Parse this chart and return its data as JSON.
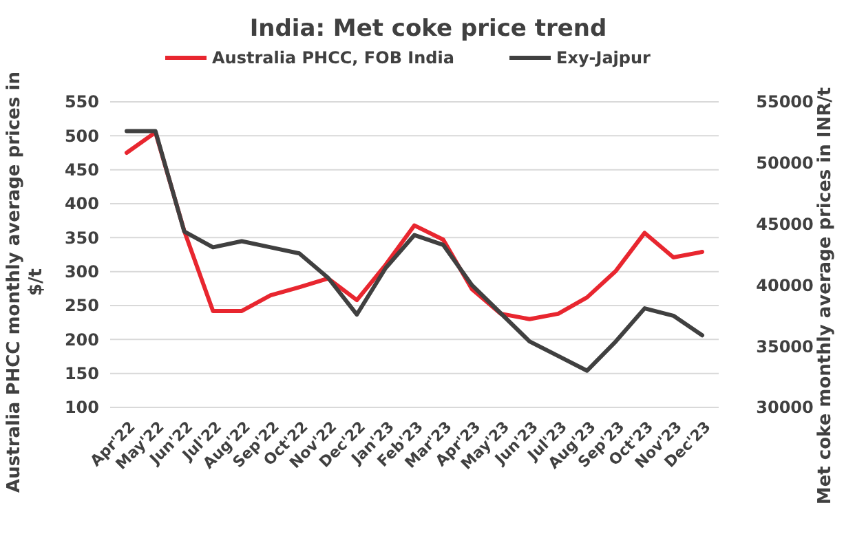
{
  "chart_data": {
    "type": "line",
    "title": "India: Met coke price trend",
    "ylabel": "Australia PHCC monthly average prices in $/t",
    "y2label": "Met coke monthly average prices in INR/t",
    "categories": [
      "Apr'22",
      "May'22",
      "Jun'22",
      "Jul'22",
      "Aug'22",
      "Sep'22",
      "Oct'22",
      "Nov'22",
      "Dec'22",
      "Jan'23",
      "Feb'23",
      "Mar'23",
      "Apr'23",
      "May'23",
      "Jun'23",
      "Jul'23",
      "Aug'23",
      "Sep'23",
      "Oct'23",
      "Nov'23",
      "Dec'23"
    ],
    "series": [
      {
        "name": "Australia PHCC, FOB India",
        "color": "#e8262f",
        "values": [
          475,
          505,
          360,
          242,
          242,
          265,
          277,
          290,
          258,
          310,
          368,
          347,
          274,
          238,
          230,
          238,
          262,
          301,
          357,
          321,
          329
        ]
      },
      {
        "name": "Exy-Jajpur",
        "color": "#404040",
        "axis": "y2",
        "values": [
          52600,
          52600,
          44400,
          43100,
          43600,
          43100,
          42600,
          40600,
          37600,
          41400,
          44100,
          43300,
          40000,
          37700,
          35400,
          34200,
          33000,
          35400,
          38100,
          37500,
          35900
        ]
      }
    ],
    "ylim": [
      100,
      550
    ],
    "yticks": [
      100,
      150,
      200,
      250,
      300,
      350,
      400,
      450,
      500,
      550
    ],
    "y2lim": [
      30000,
      55000
    ],
    "y2ticks": [
      30000,
      35000,
      40000,
      45000,
      50000,
      55000
    ],
    "grid": "y",
    "legend": "top",
    "marker": "none",
    "line_style": "solid"
  }
}
